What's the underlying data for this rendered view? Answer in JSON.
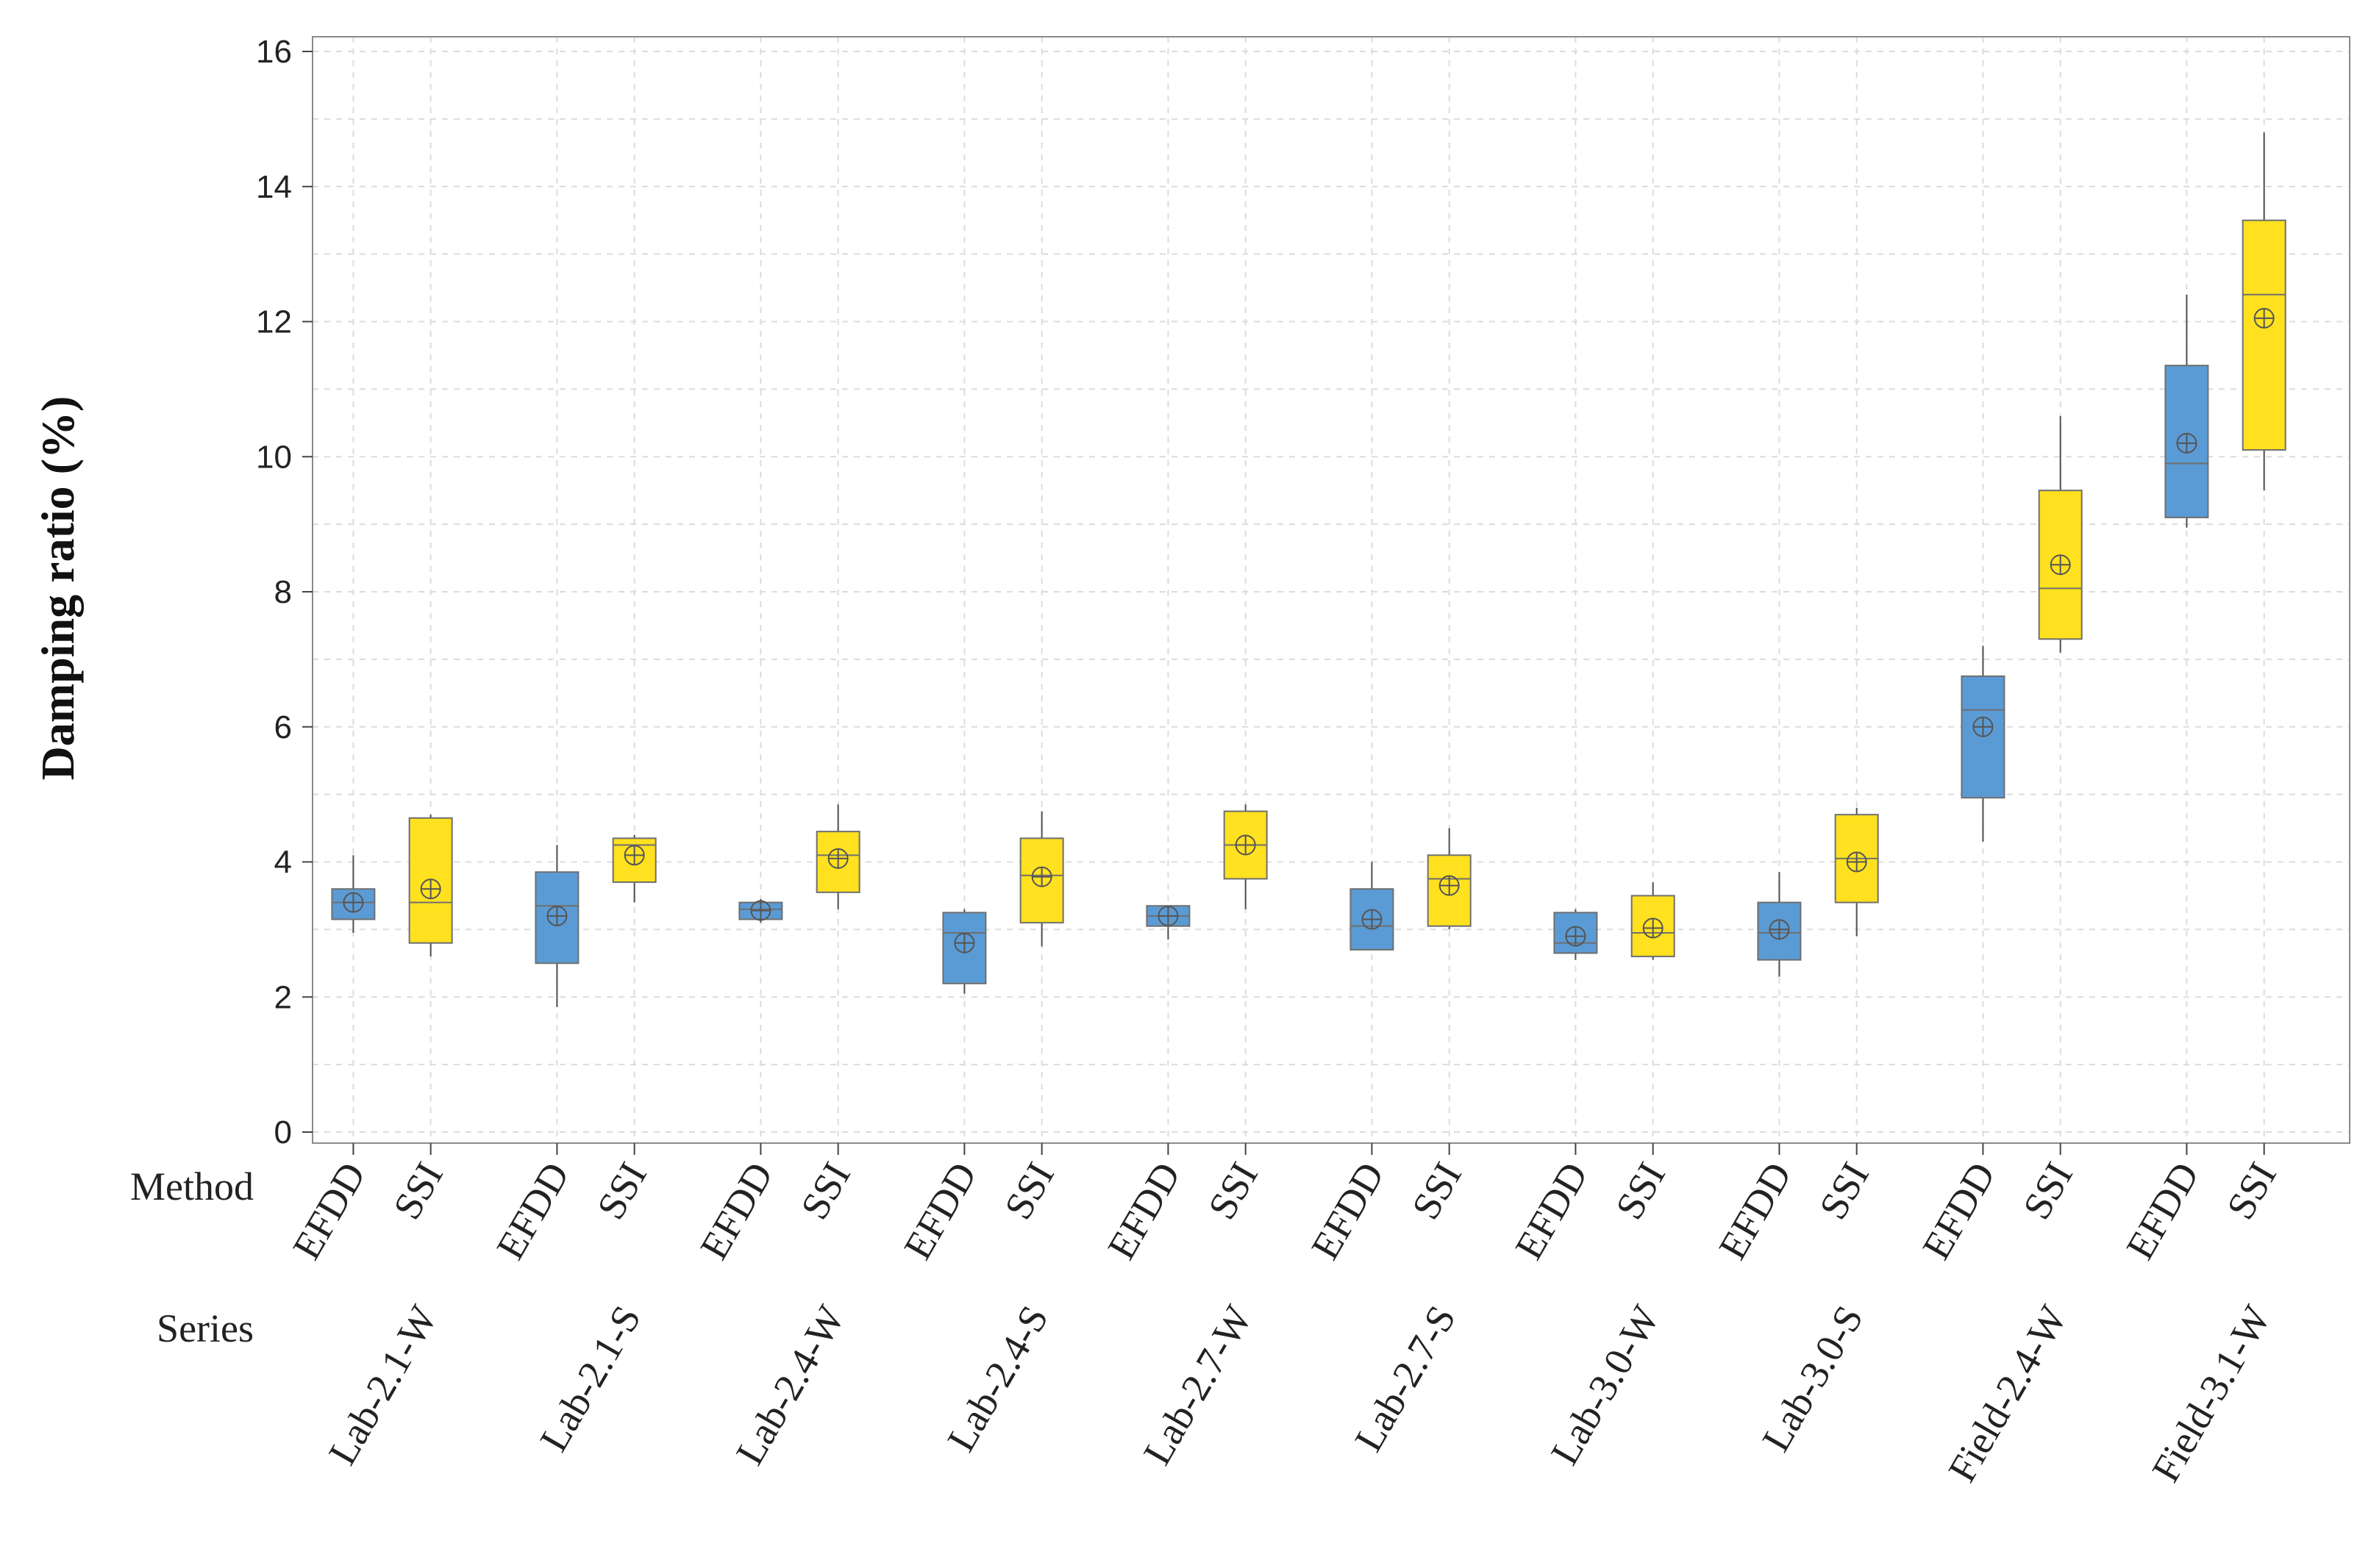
{
  "chart_data": {
    "type": "box",
    "title": "",
    "ylabel": "Damping ratio (%)",
    "ylim": [
      0,
      16
    ],
    "yticks": [
      0,
      2,
      4,
      6,
      8,
      10,
      12,
      14,
      16
    ],
    "grid": true,
    "method_row_label": "Method",
    "series_row_label": "Series",
    "colors": {
      "EFDD": "#5b9bd5",
      "SSI": "#ffe11f",
      "edge": "#6f6f6f",
      "whisker": "#4f4f4f"
    },
    "groups": [
      {
        "series": "Lab-2.1-W",
        "boxes": [
          {
            "method": "EFDD",
            "min": 2.95,
            "q1": 3.15,
            "median": 3.4,
            "q3": 3.6,
            "max": 4.1,
            "mean": 3.4
          },
          {
            "method": "SSI",
            "min": 2.6,
            "q1": 2.8,
            "median": 3.4,
            "q3": 4.65,
            "max": 4.7,
            "mean": 3.6
          }
        ]
      },
      {
        "series": "Lab-2.1-S",
        "boxes": [
          {
            "method": "EFDD",
            "min": 1.85,
            "q1": 2.5,
            "median": 3.35,
            "q3": 3.85,
            "max": 4.25,
            "mean": 3.2
          },
          {
            "method": "SSI",
            "min": 3.4,
            "q1": 3.7,
            "median": 4.25,
            "q3": 4.35,
            "max": 4.4,
            "mean": 4.1
          }
        ]
      },
      {
        "series": "Lab-2.4-W",
        "boxes": [
          {
            "method": "EFDD",
            "min": 3.1,
            "q1": 3.15,
            "median": 3.3,
            "q3": 3.4,
            "max": 3.45,
            "mean": 3.28
          },
          {
            "method": "SSI",
            "min": 3.3,
            "q1": 3.55,
            "median": 4.1,
            "q3": 4.45,
            "max": 4.85,
            "mean": 4.05
          }
        ]
      },
      {
        "series": "Lab-2.4-S",
        "boxes": [
          {
            "method": "EFDD",
            "min": 2.05,
            "q1": 2.2,
            "median": 2.95,
            "q3": 3.25,
            "max": 3.3,
            "mean": 2.8
          },
          {
            "method": "SSI",
            "min": 2.75,
            "q1": 3.1,
            "median": 3.8,
            "q3": 4.35,
            "max": 4.75,
            "mean": 3.78
          }
        ]
      },
      {
        "series": "Lab-2.7-W",
        "boxes": [
          {
            "method": "EFDD",
            "min": 2.85,
            "q1": 3.05,
            "median": 3.2,
            "q3": 3.35,
            "max": 3.35,
            "mean": 3.2
          },
          {
            "method": "SSI",
            "min": 3.3,
            "q1": 3.75,
            "median": 4.25,
            "q3": 4.75,
            "max": 4.85,
            "mean": 4.25
          }
        ]
      },
      {
        "series": "Lab-2.7-S",
        "boxes": [
          {
            "method": "EFDD",
            "min": 2.7,
            "q1": 2.7,
            "median": 3.05,
            "q3": 3.6,
            "max": 4.0,
            "mean": 3.15
          }
        ]
      },
      {
        "series": "Lab-2.7-S",
        "boxes": [
          {
            "method": "SSI",
            "min": 3.0,
            "q1": 3.05,
            "median": 3.75,
            "q3": 4.1,
            "max": 4.5,
            "mean": 3.65
          }
        ]
      },
      {
        "series": "Lab-3.0-W",
        "boxes": [
          {
            "method": "EFDD",
            "min": 2.55,
            "q1": 2.65,
            "median": 2.8,
            "q3": 3.25,
            "max": 3.3,
            "mean": 2.9
          },
          {
            "method": "SSI",
            "min": 2.55,
            "q1": 2.6,
            "median": 2.95,
            "q3": 3.5,
            "max": 3.7,
            "mean": 3.02
          }
        ]
      },
      {
        "series": "Lab-3.0-S",
        "boxes": [
          {
            "method": "EFDD",
            "min": 2.3,
            "q1": 2.55,
            "median": 2.95,
            "q3": 3.4,
            "max": 3.85,
            "mean": 3.0
          },
          {
            "method": "SSI",
            "min": 2.9,
            "q1": 3.4,
            "median": 4.05,
            "q3": 4.7,
            "max": 4.8,
            "mean": 4.0
          }
        ]
      },
      {
        "series": "Field-2.4-W",
        "boxes": [
          {
            "method": "EFDD",
            "min": 4.3,
            "q1": 4.95,
            "median": 6.25,
            "q3": 6.75,
            "max": 7.2,
            "mean": 6.0
          },
          {
            "method": "SSI",
            "min": 7.1,
            "q1": 7.3,
            "median": 8.05,
            "q3": 9.5,
            "max": 10.6,
            "mean": 8.4
          }
        ]
      },
      {
        "series": "Field-3.1-W",
        "boxes": [
          {
            "method": "EFDD",
            "min": 8.95,
            "q1": 9.1,
            "median": 9.9,
            "q3": 11.35,
            "max": 12.4,
            "mean": 10.2
          },
          {
            "method": "SSI",
            "min": 9.5,
            "q1": 10.1,
            "median": 12.4,
            "q3": 13.5,
            "max": 14.8,
            "mean": 12.05
          }
        ]
      }
    ]
  }
}
